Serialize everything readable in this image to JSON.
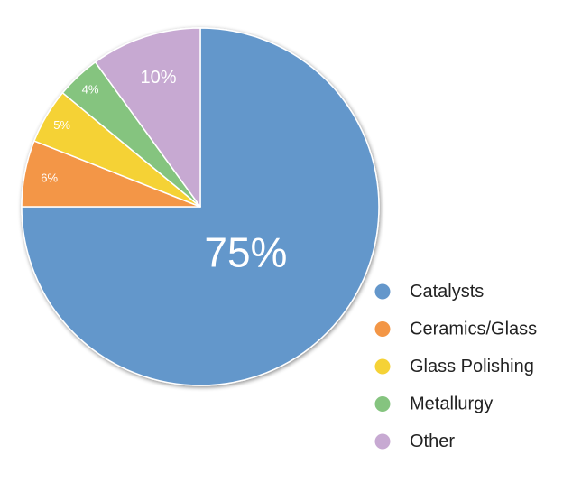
{
  "chart_data": {
    "type": "pie",
    "title": "",
    "slices": [
      {
        "label": "Catalysts",
        "value": 75,
        "display": "75%",
        "color": "#6497CB"
      },
      {
        "label": "Ceramics/Glass",
        "value": 6,
        "display": "6%",
        "color": "#F39646"
      },
      {
        "label": "Glass Polishing",
        "value": 5,
        "display": "5%",
        "color": "#F5D236"
      },
      {
        "label": "Metallurgy",
        "value": 4,
        "display": "4%",
        "color": "#85C47F"
      },
      {
        "label": "Other",
        "value": 10,
        "display": "10%",
        "color": "#C7A9D2"
      }
    ],
    "legend_position": "bottom-right"
  }
}
